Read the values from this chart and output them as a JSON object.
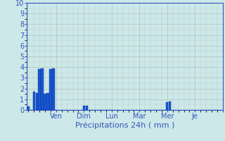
{
  "title": "",
  "xlabel": "Précipitations 24h ( mm )",
  "ylabel": "",
  "ylim": [
    0,
    10
  ],
  "yticks": [
    0,
    1,
    2,
    3,
    4,
    5,
    6,
    7,
    8,
    9,
    10
  ],
  "bar_color": "#1a56cc",
  "background_color": "#cce8e8",
  "grid_color": "#aaaaaa",
  "bar_edge_color": "#0033aa",
  "n_bars": 70,
  "bar_heights": [
    0.3,
    0,
    1.7,
    1.6,
    3.8,
    3.9,
    1.5,
    1.6,
    3.8,
    3.9,
    0,
    0,
    0,
    0,
    0,
    0,
    0,
    0,
    0,
    0,
    0.4,
    0.4,
    0,
    0,
    0,
    0,
    0,
    0,
    0,
    0,
    0,
    0,
    0,
    0,
    0,
    0,
    0,
    0,
    0,
    0,
    0,
    0,
    0,
    0,
    0,
    0,
    0,
    0,
    0,
    0,
    0.75,
    0.8,
    0,
    0,
    0,
    0,
    0,
    0,
    0,
    0,
    0,
    0,
    0,
    0,
    0,
    0,
    0,
    0,
    0,
    0
  ],
  "xtick_positions": [
    10,
    20,
    30,
    40,
    50,
    60,
    70
  ],
  "xtick_labels": [
    "Ven",
    "Dim",
    "Lun",
    "Mar",
    "Mer",
    "Je",
    ""
  ],
  "tick_color": "#3355bb",
  "axis_color": "#3355bb",
  "xlabel_fontsize": 8,
  "tick_fontsize": 7,
  "xlim": [
    -0.5,
    70
  ]
}
